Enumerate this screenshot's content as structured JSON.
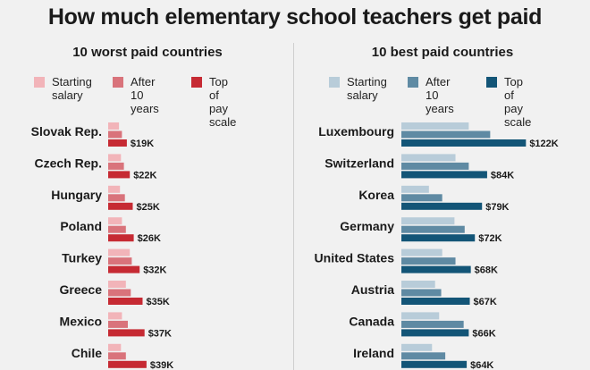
{
  "colors": {
    "worst": [
      "#f2b4b9",
      "#d9737b",
      "#c62a33"
    ],
    "best": [
      "#b8ccd9",
      "#5f8aa3",
      "#135577"
    ]
  },
  "chart_data": [
    {
      "type": "bar",
      "orientation": "horizontal",
      "title": "10 worst paid countries",
      "legend": [
        "Starting\nsalary",
        "After 10\nyears",
        "Top of\npay scale"
      ],
      "categories": [
        "Slovak Rep.",
        "Czech Rep.",
        "Hungary",
        "Poland",
        "Turkey",
        "Greece",
        "Mexico",
        "Chile"
      ],
      "series": [
        {
          "name": "Starting salary",
          "values": [
            11,
            13,
            12,
            14,
            22,
            18,
            14,
            13
          ]
        },
        {
          "name": "After 10 years",
          "values": [
            14,
            16,
            17,
            18,
            24,
            23,
            20,
            18
          ]
        },
        {
          "name": "Top of pay scale",
          "values": [
            19,
            22,
            25,
            26,
            32,
            35,
            37,
            39
          ]
        }
      ],
      "value_labels": [
        "$19K",
        "$22K",
        "$25K",
        "$26K",
        "$32K",
        "$35K",
        "$37K",
        "$39K"
      ],
      "xlim": [
        0,
        122
      ]
    },
    {
      "type": "bar",
      "orientation": "horizontal",
      "title": "10 best paid countries",
      "legend": [
        "Starting\nsalary",
        "After 10\nyears",
        "Top of\npay scale"
      ],
      "categories": [
        "Luxembourg",
        "Switzerland",
        "Korea",
        "Germany",
        "United States",
        "Austria",
        "Canada",
        "Ireland"
      ],
      "series": [
        {
          "name": "Starting salary",
          "values": [
            66,
            53,
            27,
            52,
            40,
            33,
            37,
            30
          ]
        },
        {
          "name": "After 10 years",
          "values": [
            87,
            66,
            40,
            62,
            53,
            39,
            61,
            43
          ]
        },
        {
          "name": "Top of pay scale",
          "values": [
            122,
            84,
            79,
            72,
            68,
            67,
            66,
            64
          ]
        }
      ],
      "value_labels": [
        "$122K",
        "$84K",
        "$79K",
        "$72K",
        "$68K",
        "$67K",
        "$66K",
        "$64K"
      ],
      "xlim": [
        0,
        122
      ]
    }
  ],
  "header": {
    "title": "How much elementary school teachers get paid"
  }
}
